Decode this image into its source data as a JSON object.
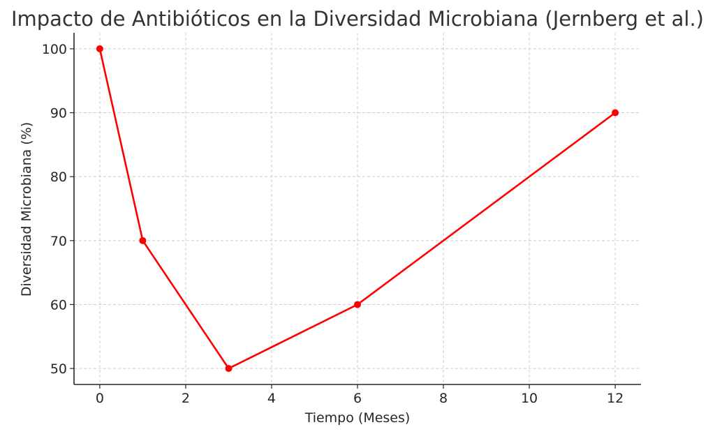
{
  "chart_data": {
    "type": "line",
    "title": "Impacto de Antibióticos en la Diversidad Microbiana (Jernberg et al.)",
    "xlabel": "Tiempo (Meses)",
    "ylabel": "Diversidad Microbiana (%)",
    "x": [
      0,
      1,
      3,
      6,
      12
    ],
    "series": [
      {
        "values": [
          100,
          70,
          50,
          60,
          90
        ],
        "color": "#ff0000"
      }
    ],
    "xticks": [
      0,
      2,
      4,
      6,
      8,
      10,
      12
    ],
    "yticks": [
      50,
      60,
      70,
      80,
      90,
      100
    ],
    "xlim": [
      -0.6,
      12.6
    ],
    "ylim": [
      47.5,
      102.5
    ],
    "grid": true,
    "marker": "circle"
  }
}
